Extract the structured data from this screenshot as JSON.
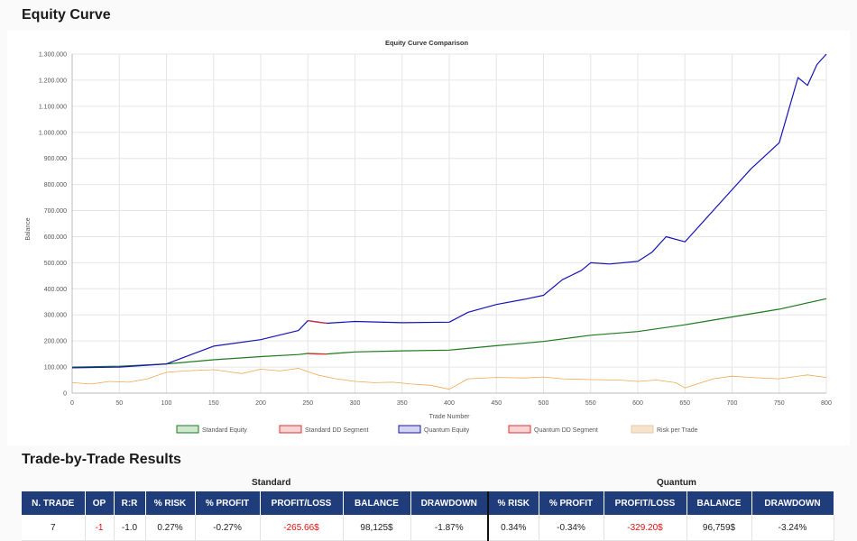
{
  "page": {
    "equity_title": "Equity Curve",
    "trades_title": "Trade-by-Trade Results"
  },
  "chart_data": {
    "type": "line",
    "title": "Equity Curve Comparison",
    "xlabel": "Trade Number",
    "ylabel": "Balance",
    "xlim": [
      0,
      800
    ],
    "ylim": [
      0,
      1300000
    ],
    "x_ticks": [
      "0",
      "50",
      "100",
      "150",
      "200",
      "250",
      "300",
      "350",
      "400",
      "450",
      "500",
      "550",
      "600",
      "650",
      "700",
      "750",
      "800"
    ],
    "y_ticks": [
      "0",
      "100.000",
      "200.000",
      "300.000",
      "400.000",
      "500.000",
      "600.000",
      "700.000",
      "800.000",
      "900.000",
      "1.000.000",
      "1.100.000",
      "1.200.000",
      "1.300.000"
    ],
    "grid": true,
    "legend_position": "bottom",
    "legend": [
      "Standard Equity",
      "Standard DD Segment",
      "Quantum Equity",
      "Quantum DD Segment",
      "Risk per Trade"
    ],
    "colors": {
      "standard": "#1e7a1e",
      "quantum": "#1414b4",
      "dd": "#e03030",
      "risk": "#f0a850",
      "grid": "#e6e6e6",
      "axis_text": "#555555"
    },
    "series": [
      {
        "name": "Standard Equity",
        "x": [
          0,
          50,
          100,
          150,
          200,
          240,
          250,
          270,
          300,
          350,
          400,
          450,
          500,
          550,
          600,
          650,
          700,
          750,
          800
        ],
        "values": [
          100000,
          103000,
          112000,
          128000,
          140000,
          148000,
          152000,
          150000,
          158000,
          162000,
          165000,
          182000,
          198000,
          222000,
          236000,
          262000,
          292000,
          322000,
          362000
        ]
      },
      {
        "name": "Standard DD Segment",
        "x": [
          250,
          260,
          270
        ],
        "values": [
          152000,
          150000,
          150000
        ]
      },
      {
        "name": "Quantum Equity",
        "x": [
          0,
          50,
          100,
          150,
          200,
          240,
          250,
          270,
          300,
          350,
          400,
          420,
          450,
          480,
          500,
          520,
          540,
          550,
          570,
          600,
          615,
          630,
          650,
          700,
          720,
          750,
          770,
          780,
          790,
          800
        ],
        "values": [
          97000,
          100000,
          112000,
          180000,
          205000,
          240000,
          278000,
          268000,
          275000,
          270000,
          272000,
          310000,
          340000,
          360000,
          375000,
          435000,
          470000,
          500000,
          495000,
          505000,
          540000,
          600000,
          580000,
          780000,
          860000,
          960000,
          1210000,
          1180000,
          1260000,
          1300000
        ]
      },
      {
        "name": "Quantum DD Segment",
        "x": [
          250,
          260,
          270
        ],
        "values": [
          278000,
          272000,
          268000
        ]
      },
      {
        "name": "Risk per Trade",
        "x": [
          0,
          20,
          40,
          60,
          80,
          100,
          120,
          150,
          180,
          200,
          220,
          240,
          260,
          280,
          300,
          320,
          340,
          360,
          380,
          400,
          420,
          450,
          480,
          500,
          520,
          550,
          580,
          600,
          620,
          640,
          650,
          680,
          700,
          720,
          750,
          780,
          800
        ],
        "values": [
          40000,
          35000,
          45000,
          42000,
          55000,
          80000,
          85000,
          90000,
          75000,
          92000,
          85000,
          95000,
          70000,
          55000,
          45000,
          40000,
          42000,
          35000,
          30000,
          15000,
          55000,
          60000,
          58000,
          62000,
          55000,
          52000,
          50000,
          45000,
          50000,
          40000,
          20000,
          55000,
          65000,
          60000,
          55000,
          70000,
          60000
        ]
      }
    ]
  },
  "table": {
    "group_standard": "Standard",
    "group_quantum": "Quantum",
    "headers": [
      "N. TRADE",
      "OP",
      "R:R",
      "% RISK",
      "% PROFIT",
      "PROFIT/LOSS",
      "BALANCE",
      "DRAWDOWN",
      "% RISK",
      "% PROFIT",
      "PROFIT/LOSS",
      "BALANCE",
      "DRAWDOWN"
    ],
    "rows": [
      [
        "7",
        "-1",
        "-1.0",
        "0.27%",
        "-0.27%",
        "-265.66$",
        "98,125$",
        "-1.87%",
        "0.34%",
        "-0.34%",
        "-329.20$",
        "96,759$",
        "-3.24%"
      ]
    ]
  }
}
